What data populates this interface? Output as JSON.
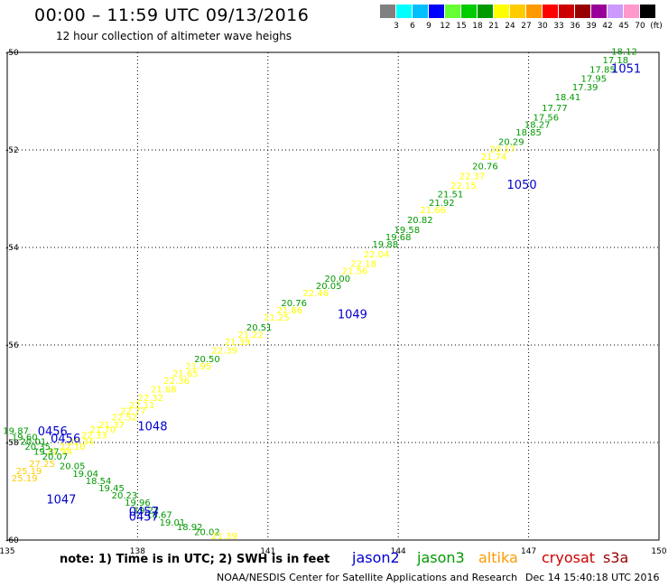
{
  "header": {
    "title": "00:00 – 11:59 UTC 09/13/2016",
    "subtitle": "12 hour collection of altimeter wave heighs"
  },
  "legend": {
    "colors": [
      "#808080",
      "#00ffff",
      "#00bfff",
      "#0000ff",
      "#66ff33",
      "#00cc00",
      "#009900",
      "#ffff00",
      "#ffcc00",
      "#ff9900",
      "#ff0000",
      "#cc0000",
      "#990000",
      "#990099",
      "#cc99ff",
      "#ff99cc",
      "#000000"
    ],
    "labels": [
      "3",
      "6",
      "9",
      "12",
      "15",
      "18",
      "21",
      "24",
      "27",
      "30",
      "33",
      "36",
      "39",
      "42",
      "45",
      "70",
      "(ft)"
    ]
  },
  "footer": {
    "note": "note: 1) Time is in UTC; 2) SWH is in feet",
    "credit": "NOAA/NESDIS Center for Satellite Applications and Research",
    "timestamp": "Dec 14 15:40:18 UTC 2016"
  },
  "satellites": [
    {
      "name": "jason2",
      "color": "#0000cc"
    },
    {
      "name": "jason3",
      "color": "#009900"
    },
    {
      "name": "altika",
      "color": "#ff9900"
    },
    {
      "name": "cryosat",
      "color": "#cc0000"
    },
    {
      "name": "s3a",
      "color": "#990000"
    }
  ],
  "chart_data": {
    "type": "scatter",
    "title": "00:00 – 11:59 UTC 09/13/2016",
    "xlim": [
      135,
      150
    ],
    "ylim": [
      -60,
      -50
    ],
    "x_ticks": [
      "135",
      "138",
      "141",
      "144",
      "147",
      "150"
    ],
    "y_ticks": [
      "-50",
      "-52",
      "-54",
      "-56",
      "-58",
      "-60"
    ],
    "grid": true,
    "units": "ft",
    "points": [
      {
        "x": 149.2,
        "y": -50.05,
        "v": "18.12",
        "c": "#009900"
      },
      {
        "x": 149.0,
        "y": -50.22,
        "v": "17.18",
        "c": "#009900"
      },
      {
        "x": 148.7,
        "y": -50.42,
        "v": "17.85",
        "c": "#009900"
      },
      {
        "x": 148.5,
        "y": -50.6,
        "v": "17.95",
        "c": "#009900"
      },
      {
        "x": 148.3,
        "y": -50.78,
        "v": "17.39",
        "c": "#009900"
      },
      {
        "x": 147.9,
        "y": -50.98,
        "v": "18.41",
        "c": "#009900"
      },
      {
        "x": 147.6,
        "y": -51.2,
        "v": "17.77",
        "c": "#009900"
      },
      {
        "x": 147.4,
        "y": -51.4,
        "v": "17.56",
        "c": "#009900"
      },
      {
        "x": 147.2,
        "y": -51.55,
        "v": "18.27",
        "c": "#009900"
      },
      {
        "x": 147.0,
        "y": -51.7,
        "v": "18.85",
        "c": "#009900"
      },
      {
        "x": 146.6,
        "y": -51.9,
        "v": "20.29",
        "c": "#009900"
      },
      {
        "x": 146.4,
        "y": -52.05,
        "v": "20.17",
        "c": "#ffff00"
      },
      {
        "x": 146.2,
        "y": -52.2,
        "v": "21.74",
        "c": "#ffff00"
      },
      {
        "x": 146.0,
        "y": -52.4,
        "v": "20.76",
        "c": "#009900"
      },
      {
        "x": 145.7,
        "y": -52.6,
        "v": "22.37",
        "c": "#ffff00"
      },
      {
        "x": 145.5,
        "y": -52.8,
        "v": "22.15",
        "c": "#ffff00"
      },
      {
        "x": 145.2,
        "y": -52.97,
        "v": "21.51",
        "c": "#009900"
      },
      {
        "x": 145.0,
        "y": -53.15,
        "v": "21.92",
        "c": "#009900"
      },
      {
        "x": 144.8,
        "y": -53.3,
        "v": "21.66",
        "c": "#ffff00"
      },
      {
        "x": 144.5,
        "y": -53.5,
        "v": "20.82",
        "c": "#009900"
      },
      {
        "x": 144.2,
        "y": -53.7,
        "v": "19.58",
        "c": "#009900"
      },
      {
        "x": 144.0,
        "y": -53.85,
        "v": "19.68",
        "c": "#009900"
      },
      {
        "x": 143.7,
        "y": -54.0,
        "v": "19.88",
        "c": "#009900"
      },
      {
        "x": 143.5,
        "y": -54.2,
        "v": "22.04",
        "c": "#ffff00"
      },
      {
        "x": 143.2,
        "y": -54.4,
        "v": "22.18",
        "c": "#ffff00"
      },
      {
        "x": 143.0,
        "y": -54.55,
        "v": "21.56",
        "c": "#ffff00"
      },
      {
        "x": 142.6,
        "y": -54.7,
        "v": "20.00",
        "c": "#009900"
      },
      {
        "x": 142.4,
        "y": -54.85,
        "v": "20.05",
        "c": "#009900"
      },
      {
        "x": 142.1,
        "y": -55.0,
        "v": "22.46",
        "c": "#ffff00"
      },
      {
        "x": 141.6,
        "y": -55.2,
        "v": "20.76",
        "c": "#009900"
      },
      {
        "x": 141.5,
        "y": -55.35,
        "v": "21.86",
        "c": "#ffff00"
      },
      {
        "x": 141.2,
        "y": -55.5,
        "v": "21.25",
        "c": "#ffff00"
      },
      {
        "x": 140.8,
        "y": -55.7,
        "v": "20.51",
        "c": "#009900"
      },
      {
        "x": 140.6,
        "y": -55.85,
        "v": "21.22",
        "c": "#ffff00"
      },
      {
        "x": 140.3,
        "y": -56.0,
        "v": "21.39",
        "c": "#ffff00"
      },
      {
        "x": 140.0,
        "y": -56.18,
        "v": "22.39",
        "c": "#ffff00"
      },
      {
        "x": 139.6,
        "y": -56.35,
        "v": "20.50",
        "c": "#009900"
      },
      {
        "x": 139.4,
        "y": -56.5,
        "v": "21.95",
        "c": "#ffff00"
      },
      {
        "x": 139.1,
        "y": -56.65,
        "v": "21.65",
        "c": "#ffff00"
      },
      {
        "x": 138.9,
        "y": -56.8,
        "v": "22.36",
        "c": "#ffff00"
      },
      {
        "x": 138.6,
        "y": -56.97,
        "v": "21.68",
        "c": "#ffff00"
      },
      {
        "x": 138.3,
        "y": -57.15,
        "v": "22.32",
        "c": "#ffff00"
      },
      {
        "x": 138.1,
        "y": -57.3,
        "v": "22.11",
        "c": "#ffff00"
      },
      {
        "x": 137.9,
        "y": -57.42,
        "v": "22.77",
        "c": "#ffff00"
      },
      {
        "x": 137.7,
        "y": -57.55,
        "v": "22.52",
        "c": "#ffff00"
      },
      {
        "x": 137.4,
        "y": -57.7,
        "v": "21.37",
        "c": "#ffff00"
      },
      {
        "x": 137.2,
        "y": -57.8,
        "v": "21.70",
        "c": "#ffff00"
      },
      {
        "x": 137.0,
        "y": -57.92,
        "v": "22.33",
        "c": "#ffff00"
      },
      {
        "x": 136.7,
        "y": -58.05,
        "v": "22.34",
        "c": "#ffff00"
      },
      {
        "x": 136.5,
        "y": -58.15,
        "v": "22.10",
        "c": "#ffff00"
      },
      {
        "x": 136.2,
        "y": -58.25,
        "v": "21.94",
        "c": "#ffff00"
      },
      {
        "x": 135.2,
        "y": -57.82,
        "v": "19.87",
        "c": "#009900"
      },
      {
        "x": 135.4,
        "y": -57.95,
        "v": "19.60",
        "c": "#009900"
      },
      {
        "x": 135.6,
        "y": -58.05,
        "v": "20.01",
        "c": "#009900"
      },
      {
        "x": 135.7,
        "y": -58.15,
        "v": "20.35",
        "c": "#009900"
      },
      {
        "x": 135.9,
        "y": -58.25,
        "v": "19.37",
        "c": "#009900"
      },
      {
        "x": 136.1,
        "y": -58.35,
        "v": "20.07",
        "c": "#009900"
      },
      {
        "x": 135.8,
        "y": -58.5,
        "v": "27.25",
        "c": "#ffcc00"
      },
      {
        "x": 135.5,
        "y": -58.65,
        "v": "25.19",
        "c": "#ffcc00"
      },
      {
        "x": 135.4,
        "y": -58.8,
        "v": "25.19",
        "c": "#ffcc00"
      },
      {
        "x": 136.5,
        "y": -58.55,
        "v": "20.05",
        "c": "#009900"
      },
      {
        "x": 136.8,
        "y": -58.7,
        "v": "19.04",
        "c": "#009900"
      },
      {
        "x": 137.1,
        "y": -58.85,
        "v": "18.54",
        "c": "#009900"
      },
      {
        "x": 137.4,
        "y": -59.0,
        "v": "19.45",
        "c": "#009900"
      },
      {
        "x": 137.7,
        "y": -59.15,
        "v": "20.23",
        "c": "#009900"
      },
      {
        "x": 138.0,
        "y": -59.3,
        "v": "19.96",
        "c": "#009900"
      },
      {
        "x": 138.2,
        "y": -59.45,
        "v": "19.22",
        "c": "#009900"
      },
      {
        "x": 138.5,
        "y": -59.55,
        "v": "18.67",
        "c": "#009900"
      },
      {
        "x": 138.8,
        "y": -59.7,
        "v": "19.01",
        "c": "#009900"
      },
      {
        "x": 139.2,
        "y": -59.8,
        "v": "18.92",
        "c": "#009900"
      },
      {
        "x": 139.6,
        "y": -59.9,
        "v": "20.02",
        "c": "#009900"
      },
      {
        "x": 140.0,
        "y": -59.98,
        "v": "21.39",
        "c": "#ffff00"
      }
    ],
    "pass_labels": [
      {
        "x": 148.9,
        "y": -50.42,
        "text": "1051",
        "c": "#0000cc"
      },
      {
        "x": 146.5,
        "y": -52.8,
        "text": "1050",
        "c": "#0000cc"
      },
      {
        "x": 142.6,
        "y": -55.45,
        "text": "1049",
        "c": "#0000cc"
      },
      {
        "x": 138.0,
        "y": -57.75,
        "text": "1048",
        "c": "#0000cc"
      },
      {
        "x": 135.7,
        "y": -57.85,
        "text": "0456",
        "c": "#0000cc"
      },
      {
        "x": 136.0,
        "y": -58.0,
        "text": "0456",
        "c": "#0000cc"
      },
      {
        "x": 135.9,
        "y": -59.25,
        "text": "1047",
        "c": "#0000cc"
      },
      {
        "x": 137.8,
        "y": -59.5,
        "text": "0457",
        "c": "#0000cc"
      },
      {
        "x": 137.8,
        "y": -59.6,
        "text": "0457",
        "c": "#0000cc"
      }
    ]
  }
}
